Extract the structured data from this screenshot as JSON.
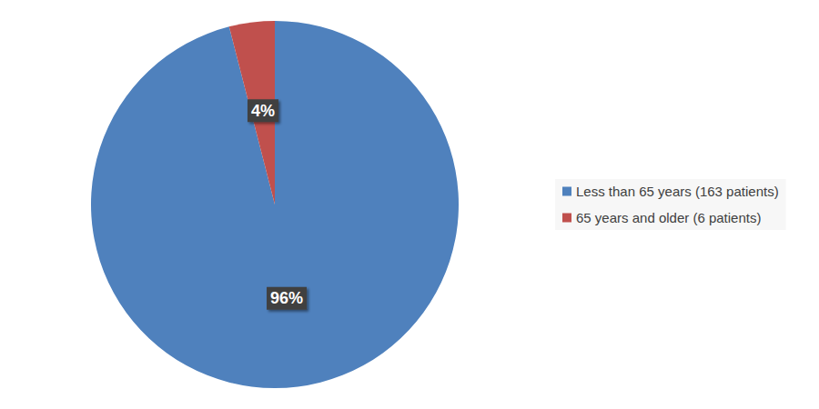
{
  "chart_data": {
    "type": "pie",
    "categories": [
      "Less than 65 years (163 patients)",
      "65 years and older (6 patients)"
    ],
    "values": [
      96,
      4
    ],
    "value_labels": [
      "96%",
      "4%"
    ],
    "colors": [
      "#4f81bd",
      "#c0504d"
    ],
    "data_labels": true,
    "legend": "right"
  }
}
